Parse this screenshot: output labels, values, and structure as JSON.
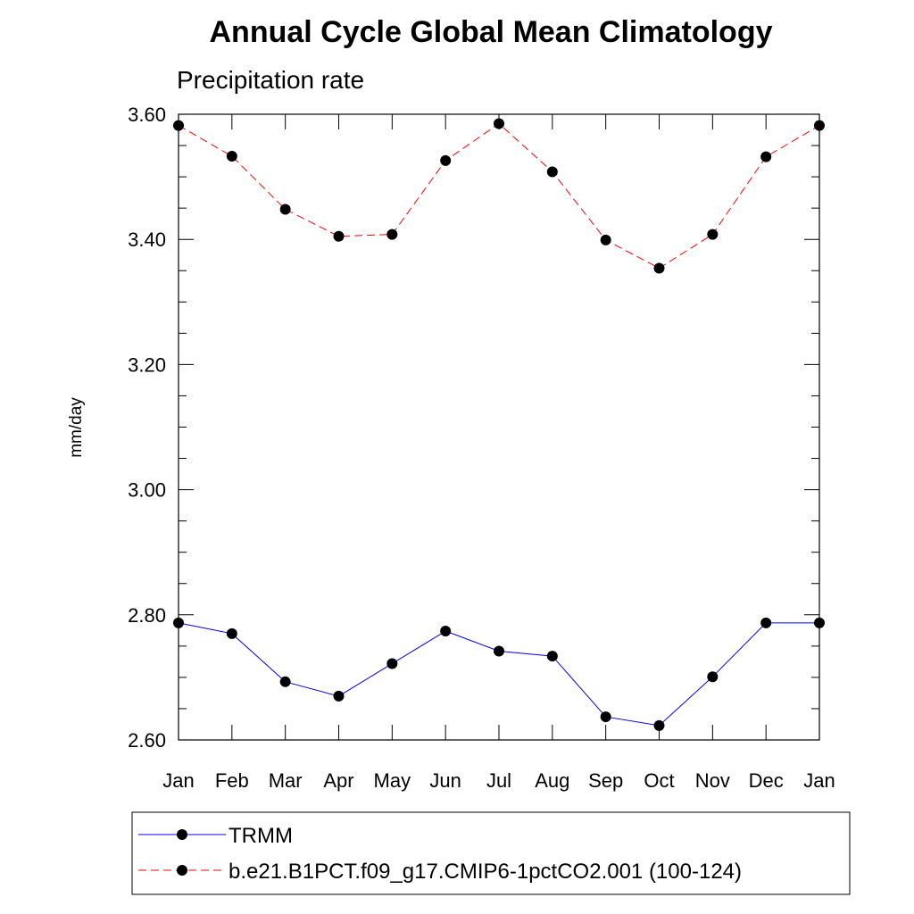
{
  "chart_data": {
    "type": "line",
    "title": "Annual Cycle Global Mean Climatology",
    "subtitle": "Precipitation rate",
    "xlabel": "",
    "ylabel": "mm/day",
    "categories": [
      "Jan",
      "Feb",
      "Mar",
      "Apr",
      "May",
      "Jun",
      "Jul",
      "Aug",
      "Sep",
      "Oct",
      "Nov",
      "Dec",
      "Jan"
    ],
    "ylim": [
      2.6,
      3.6
    ],
    "yticks": [
      "2.60",
      "2.80",
      "3.00",
      "3.20",
      "3.40",
      "3.60"
    ],
    "grid": false,
    "legend_position": "bottom",
    "series": [
      {
        "name": "TRMM",
        "color": "#0000ff",
        "dash": "solid",
        "values": [
          2.787,
          2.77,
          2.693,
          2.67,
          2.722,
          2.774,
          2.742,
          2.734,
          2.637,
          2.623,
          2.701,
          2.787,
          2.787
        ]
      },
      {
        "name": "b.e21.B1PCT.f09_g17.CMIP6-1pctCO2.001 (100-124)",
        "color": "#ff0000",
        "dash": "dashed",
        "values": [
          3.582,
          3.533,
          3.448,
          3.405,
          3.408,
          3.526,
          3.585,
          3.508,
          3.399,
          3.354,
          3.408,
          3.532,
          3.582
        ]
      }
    ]
  }
}
